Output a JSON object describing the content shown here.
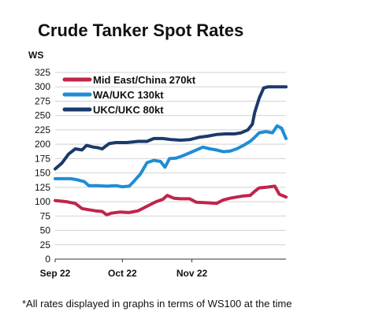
{
  "title": "Crude Tanker Spot Rates",
  "footnote": "*All rates displayed in graphs in terms of WS100 at the time",
  "chart_data": {
    "type": "line",
    "title": "Crude Tanker Spot Rates",
    "ylabel": "WS",
    "xlabel": "",
    "ylim": [
      0,
      325
    ],
    "yticks": [
      0,
      25,
      50,
      75,
      100,
      125,
      150,
      175,
      200,
      225,
      250,
      275,
      300,
      325
    ],
    "xlim": [
      "2022-09-01",
      "2022-12-13"
    ],
    "xticks": [
      {
        "label": "Sep 22",
        "date": "2022-09-01"
      },
      {
        "label": "Oct 22",
        "date": "2022-10-01"
      },
      {
        "label": "Nov 22",
        "date": "2022-11-01"
      }
    ],
    "grid": "horizontal",
    "legend": "top-left",
    "series": [
      {
        "name": "Mid East/China 270kt",
        "color": "#c0254a",
        "points": [
          [
            "2022-09-01",
            102
          ],
          [
            "2022-09-06",
            100
          ],
          [
            "2022-09-10",
            97
          ],
          [
            "2022-09-13",
            88
          ],
          [
            "2022-09-16",
            86
          ],
          [
            "2022-09-19",
            84
          ],
          [
            "2022-09-22",
            83
          ],
          [
            "2022-09-24",
            77
          ],
          [
            "2022-09-26",
            80
          ],
          [
            "2022-09-30",
            82
          ],
          [
            "2022-10-04",
            81
          ],
          [
            "2022-10-08",
            84
          ],
          [
            "2022-10-12",
            92
          ],
          [
            "2022-10-16",
            100
          ],
          [
            "2022-10-19",
            104
          ],
          [
            "2022-10-21",
            111
          ],
          [
            "2022-10-24",
            106
          ],
          [
            "2022-10-27",
            105
          ],
          [
            "2022-10-31",
            105
          ],
          [
            "2022-11-03",
            99
          ],
          [
            "2022-11-08",
            98
          ],
          [
            "2022-11-12",
            97
          ],
          [
            "2022-11-15",
            103
          ],
          [
            "2022-11-18",
            106
          ],
          [
            "2022-11-21",
            108
          ],
          [
            "2022-11-24",
            110
          ],
          [
            "2022-11-27",
            111
          ],
          [
            "2022-11-29",
            118
          ],
          [
            "2022-12-01",
            124
          ],
          [
            "2022-12-04",
            125
          ],
          [
            "2022-12-06",
            126
          ],
          [
            "2022-12-08",
            127
          ],
          [
            "2022-12-10",
            113
          ],
          [
            "2022-12-13",
            108
          ]
        ]
      },
      {
        "name": "WA/UKC 130kt",
        "color": "#1f8dd6",
        "points": [
          [
            "2022-09-01",
            140
          ],
          [
            "2022-09-08",
            140
          ],
          [
            "2022-09-11",
            138
          ],
          [
            "2022-09-14",
            135
          ],
          [
            "2022-09-16",
            128
          ],
          [
            "2022-09-20",
            128
          ],
          [
            "2022-09-24",
            127
          ],
          [
            "2022-09-28",
            128
          ],
          [
            "2022-10-01",
            126
          ],
          [
            "2022-10-04",
            127
          ],
          [
            "2022-10-06",
            135
          ],
          [
            "2022-10-09",
            148
          ],
          [
            "2022-10-12",
            168
          ],
          [
            "2022-10-15",
            172
          ],
          [
            "2022-10-18",
            170
          ],
          [
            "2022-10-20",
            160
          ],
          [
            "2022-10-22",
            175
          ],
          [
            "2022-10-25",
            176
          ],
          [
            "2022-10-28",
            180
          ],
          [
            "2022-10-31",
            185
          ],
          [
            "2022-11-03",
            190
          ],
          [
            "2022-11-06",
            195
          ],
          [
            "2022-11-09",
            192
          ],
          [
            "2022-11-12",
            190
          ],
          [
            "2022-11-15",
            187
          ],
          [
            "2022-11-18",
            188
          ],
          [
            "2022-11-21",
            192
          ],
          [
            "2022-11-24",
            198
          ],
          [
            "2022-11-27",
            205
          ],
          [
            "2022-11-29",
            212
          ],
          [
            "2022-12-01",
            220
          ],
          [
            "2022-12-04",
            222
          ],
          [
            "2022-12-07",
            220
          ],
          [
            "2022-12-09",
            232
          ],
          [
            "2022-12-11",
            228
          ],
          [
            "2022-12-13",
            210
          ]
        ]
      },
      {
        "name": "UKC/UKC 80kt",
        "color": "#1b3a6b",
        "points": [
          [
            "2022-09-01",
            157
          ],
          [
            "2022-09-04",
            167
          ],
          [
            "2022-09-07",
            183
          ],
          [
            "2022-09-10",
            192
          ],
          [
            "2022-09-13",
            190
          ],
          [
            "2022-09-15",
            198
          ],
          [
            "2022-09-18",
            195
          ],
          [
            "2022-09-20",
            194
          ],
          [
            "2022-09-22",
            192
          ],
          [
            "2022-09-25",
            201
          ],
          [
            "2022-09-28",
            203
          ],
          [
            "2022-10-03",
            203
          ],
          [
            "2022-10-08",
            205
          ],
          [
            "2022-10-12",
            205
          ],
          [
            "2022-10-15",
            210
          ],
          [
            "2022-10-19",
            210
          ],
          [
            "2022-10-23",
            208
          ],
          [
            "2022-10-27",
            207
          ],
          [
            "2022-10-31",
            208
          ],
          [
            "2022-11-04",
            212
          ],
          [
            "2022-11-08",
            214
          ],
          [
            "2022-11-12",
            217
          ],
          [
            "2022-11-16",
            218
          ],
          [
            "2022-11-20",
            218
          ],
          [
            "2022-11-23",
            220
          ],
          [
            "2022-11-26",
            225
          ],
          [
            "2022-11-28",
            235
          ],
          [
            "2022-11-29",
            255
          ],
          [
            "2022-12-01",
            280
          ],
          [
            "2022-12-03",
            298
          ],
          [
            "2022-12-05",
            300
          ],
          [
            "2022-12-09",
            300
          ],
          [
            "2022-12-13",
            300
          ]
        ]
      }
    ]
  }
}
